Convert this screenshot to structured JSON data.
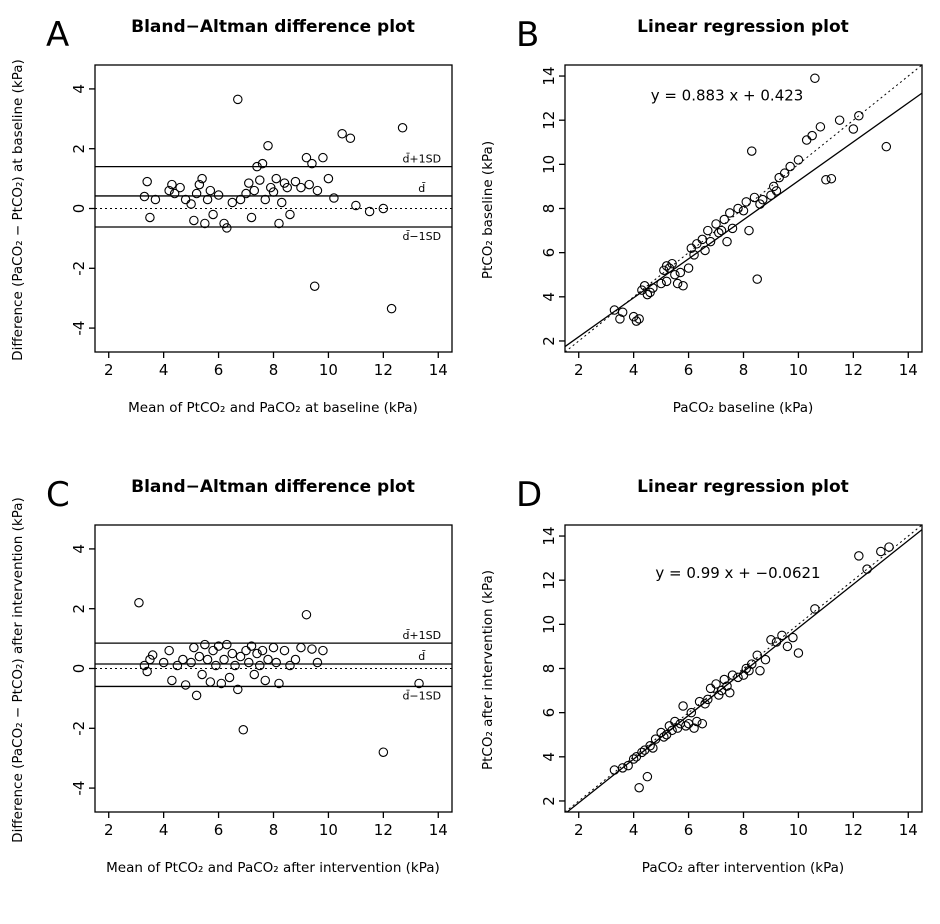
{
  "figure": {
    "background": "#ffffff",
    "point_color": "#000000",
    "line_color": "#000000"
  },
  "chart_data": [
    {
      "panel_letter": "A",
      "type": "scatter",
      "subtype": "bland_altman",
      "title": "Bland−Altman difference plot",
      "xlabel": "Mean of PtCO₂ and PaCO₂ at baseline (kPa)",
      "ylabel": "Difference (PaCO₂ − PtCO₂) at baseline (kPa)",
      "xlim": [
        1.5,
        14.5
      ],
      "ylim": [
        -4.8,
        4.8
      ],
      "xticks": [
        2,
        4,
        6,
        8,
        10,
        12,
        14
      ],
      "yticks": [
        -4,
        -2,
        0,
        2,
        4
      ],
      "ba_lines": {
        "mean": 0.42,
        "upper": 1.4,
        "lower": -0.62,
        "zero": 0
      },
      "line_labels": {
        "upper": "d̄+1SD",
        "mean": "d̄",
        "lower": "d̄−1SD"
      },
      "label_x": 13.4,
      "points": [
        [
          3.3,
          0.4
        ],
        [
          3.4,
          0.9
        ],
        [
          3.5,
          -0.3
        ],
        [
          3.7,
          0.3
        ],
        [
          4.2,
          0.6
        ],
        [
          4.3,
          0.8
        ],
        [
          4.4,
          0.5
        ],
        [
          4.6,
          0.7
        ],
        [
          4.8,
          0.3
        ],
        [
          5.0,
          0.15
        ],
        [
          5.1,
          -0.4
        ],
        [
          5.2,
          0.5
        ],
        [
          5.3,
          0.8
        ],
        [
          5.4,
          1.0
        ],
        [
          5.5,
          -0.5
        ],
        [
          5.6,
          0.3
        ],
        [
          5.7,
          0.6
        ],
        [
          5.8,
          -0.2
        ],
        [
          6.0,
          0.45
        ],
        [
          6.2,
          -0.5
        ],
        [
          6.3,
          -0.65
        ],
        [
          6.5,
          0.2
        ],
        [
          6.7,
          3.65
        ],
        [
          6.8,
          0.3
        ],
        [
          7.0,
          0.5
        ],
        [
          7.1,
          0.85
        ],
        [
          7.2,
          -0.3
        ],
        [
          7.3,
          0.6
        ],
        [
          7.4,
          1.4
        ],
        [
          7.5,
          0.95
        ],
        [
          7.6,
          1.5
        ],
        [
          7.7,
          0.3
        ],
        [
          7.8,
          2.1
        ],
        [
          7.9,
          0.7
        ],
        [
          8.0,
          0.55
        ],
        [
          8.1,
          1.0
        ],
        [
          8.2,
          -0.5
        ],
        [
          8.3,
          0.2
        ],
        [
          8.4,
          0.85
        ],
        [
          8.5,
          0.7
        ],
        [
          8.6,
          -0.2
        ],
        [
          8.8,
          0.9
        ],
        [
          9.0,
          0.7
        ],
        [
          9.2,
          1.7
        ],
        [
          9.3,
          0.8
        ],
        [
          9.4,
          1.5
        ],
        [
          9.5,
          -2.6
        ],
        [
          9.6,
          0.6
        ],
        [
          9.8,
          1.7
        ],
        [
          10.0,
          1.0
        ],
        [
          10.2,
          0.35
        ],
        [
          10.5,
          2.5
        ],
        [
          10.8,
          2.35
        ],
        [
          11.0,
          0.1
        ],
        [
          11.5,
          -0.1
        ],
        [
          12.0,
          0.0
        ],
        [
          12.3,
          -3.35
        ],
        [
          12.7,
          2.7
        ]
      ]
    },
    {
      "panel_letter": "B",
      "type": "scatter",
      "subtype": "regression",
      "title": "Linear regression plot",
      "xlabel": "PaCO₂ baseline (kPa)",
      "ylabel": "PtCO₂ baseline (kPa)",
      "xlim": [
        1.5,
        14.5
      ],
      "ylim": [
        1.5,
        14.5
      ],
      "xticks": [
        2,
        4,
        6,
        8,
        10,
        12,
        14
      ],
      "yticks": [
        2,
        4,
        6,
        8,
        10,
        12,
        14
      ],
      "equation": "y = 0.883 x + 0.423",
      "equation_pos": [
        7.4,
        12.9
      ],
      "regression": {
        "slope": 0.883,
        "intercept": 0.423
      },
      "identity_line": true,
      "points": [
        [
          3.3,
          3.4
        ],
        [
          3.5,
          3.0
        ],
        [
          3.6,
          3.3
        ],
        [
          4.0,
          3.1
        ],
        [
          4.1,
          2.9
        ],
        [
          4.2,
          3.0
        ],
        [
          4.3,
          4.3
        ],
        [
          4.4,
          4.5
        ],
        [
          4.5,
          4.1
        ],
        [
          4.6,
          4.2
        ],
        [
          4.7,
          4.4
        ],
        [
          5.0,
          4.6
        ],
        [
          5.1,
          5.2
        ],
        [
          5.2,
          5.4
        ],
        [
          5.2,
          4.7
        ],
        [
          5.3,
          5.3
        ],
        [
          5.4,
          5.5
        ],
        [
          5.5,
          5.0
        ],
        [
          5.6,
          4.6
        ],
        [
          5.7,
          5.1
        ],
        [
          5.8,
          4.5
        ],
        [
          6.0,
          5.3
        ],
        [
          6.1,
          6.2
        ],
        [
          6.2,
          5.9
        ],
        [
          6.3,
          6.4
        ],
        [
          6.5,
          6.6
        ],
        [
          6.6,
          6.1
        ],
        [
          6.7,
          7.0
        ],
        [
          6.8,
          6.5
        ],
        [
          7.0,
          7.3
        ],
        [
          7.1,
          6.9
        ],
        [
          7.2,
          7.0
        ],
        [
          7.3,
          7.5
        ],
        [
          7.4,
          6.5
        ],
        [
          7.5,
          7.8
        ],
        [
          7.6,
          7.1
        ],
        [
          7.8,
          8.0
        ],
        [
          8.0,
          7.9
        ],
        [
          8.1,
          8.3
        ],
        [
          8.2,
          7.0
        ],
        [
          8.3,
          10.6
        ],
        [
          8.4,
          8.5
        ],
        [
          8.5,
          4.8
        ],
        [
          8.6,
          8.2
        ],
        [
          8.7,
          8.4
        ],
        [
          9.0,
          8.6
        ],
        [
          9.1,
          9.0
        ],
        [
          9.2,
          8.8
        ],
        [
          9.3,
          9.4
        ],
        [
          9.5,
          9.6
        ],
        [
          9.7,
          9.9
        ],
        [
          10.0,
          10.2
        ],
        [
          10.3,
          11.1
        ],
        [
          10.5,
          11.3
        ],
        [
          10.6,
          13.9
        ],
        [
          10.8,
          11.7
        ],
        [
          11.0,
          9.3
        ],
        [
          11.2,
          9.35
        ],
        [
          11.5,
          12.0
        ],
        [
          12.0,
          11.6
        ],
        [
          12.2,
          12.2
        ],
        [
          13.2,
          10.8
        ]
      ]
    },
    {
      "panel_letter": "C",
      "type": "scatter",
      "subtype": "bland_altman",
      "title": "Bland−Altman difference plot",
      "xlabel": "Mean of PtCO₂ and PaCO₂ after intervention (kPa)",
      "ylabel": "Difference (PaCO₂ − PtCO₂) after intervention (kPa)",
      "xlim": [
        1.5,
        14.5
      ],
      "ylim": [
        -4.8,
        4.8
      ],
      "xticks": [
        2,
        4,
        6,
        8,
        10,
        12,
        14
      ],
      "yticks": [
        -4,
        -2,
        0,
        2,
        4
      ],
      "ba_lines": {
        "mean": 0.15,
        "upper": 0.85,
        "lower": -0.6,
        "zero": 0
      },
      "line_labels": {
        "upper": "d̄+1SD",
        "mean": "d̄",
        "lower": "d̄−1SD"
      },
      "label_x": 13.4,
      "points": [
        [
          3.1,
          2.2
        ],
        [
          3.3,
          0.1
        ],
        [
          3.4,
          -0.1
        ],
        [
          3.5,
          0.3
        ],
        [
          3.6,
          0.45
        ],
        [
          4.0,
          0.2
        ],
        [
          4.2,
          0.6
        ],
        [
          4.3,
          -0.4
        ],
        [
          4.5,
          0.1
        ],
        [
          4.7,
          0.3
        ],
        [
          4.8,
          -0.55
        ],
        [
          5.0,
          0.2
        ],
        [
          5.1,
          0.7
        ],
        [
          5.2,
          -0.9
        ],
        [
          5.3,
          0.4
        ],
        [
          5.4,
          -0.2
        ],
        [
          5.5,
          0.8
        ],
        [
          5.6,
          0.3
        ],
        [
          5.7,
          -0.45
        ],
        [
          5.8,
          0.6
        ],
        [
          5.9,
          0.1
        ],
        [
          6.0,
          0.75
        ],
        [
          6.1,
          -0.5
        ],
        [
          6.2,
          0.3
        ],
        [
          6.3,
          0.8
        ],
        [
          6.4,
          -0.3
        ],
        [
          6.5,
          0.5
        ],
        [
          6.6,
          0.1
        ],
        [
          6.7,
          -0.7
        ],
        [
          6.8,
          0.4
        ],
        [
          6.9,
          -2.05
        ],
        [
          7.0,
          0.6
        ],
        [
          7.1,
          0.2
        ],
        [
          7.2,
          0.75
        ],
        [
          7.3,
          -0.2
        ],
        [
          7.4,
          0.5
        ],
        [
          7.5,
          0.1
        ],
        [
          7.6,
          0.6
        ],
        [
          7.7,
          -0.4
        ],
        [
          7.8,
          0.3
        ],
        [
          8.0,
          0.7
        ],
        [
          8.1,
          0.2
        ],
        [
          8.2,
          -0.5
        ],
        [
          8.4,
          0.6
        ],
        [
          8.6,
          0.1
        ],
        [
          8.8,
          0.3
        ],
        [
          9.0,
          0.7
        ],
        [
          9.2,
          1.8
        ],
        [
          9.4,
          0.65
        ],
        [
          9.6,
          0.2
        ],
        [
          9.8,
          0.6
        ],
        [
          12.0,
          -2.8
        ],
        [
          13.3,
          -0.5
        ]
      ]
    },
    {
      "panel_letter": "D",
      "type": "scatter",
      "subtype": "regression",
      "title": "Linear regression plot",
      "xlabel": "PaCO₂ after intervention (kPa)",
      "ylabel": "PtCO₂ after intervention (kPa)",
      "xlim": [
        1.5,
        14.5
      ],
      "ylim": [
        1.5,
        14.5
      ],
      "xticks": [
        2,
        4,
        6,
        8,
        10,
        12,
        14
      ],
      "yticks": [
        2,
        4,
        6,
        8,
        10,
        12,
        14
      ],
      "equation": "y = 0.99 x + −0.0621",
      "equation_pos": [
        7.8,
        12.1
      ],
      "regression": {
        "slope": 0.99,
        "intercept": -0.0621
      },
      "identity_line": true,
      "points": [
        [
          3.3,
          3.4
        ],
        [
          3.6,
          3.5
        ],
        [
          3.8,
          3.6
        ],
        [
          4.0,
          3.9
        ],
        [
          4.1,
          4.0
        ],
        [
          4.2,
          2.6
        ],
        [
          4.3,
          4.2
        ],
        [
          4.4,
          4.3
        ],
        [
          4.5,
          3.1
        ],
        [
          4.6,
          4.5
        ],
        [
          4.7,
          4.4
        ],
        [
          4.8,
          4.8
        ],
        [
          5.0,
          5.1
        ],
        [
          5.1,
          4.9
        ],
        [
          5.2,
          5.0
        ],
        [
          5.3,
          5.4
        ],
        [
          5.4,
          5.2
        ],
        [
          5.5,
          5.6
        ],
        [
          5.6,
          5.3
        ],
        [
          5.7,
          5.5
        ],
        [
          5.8,
          6.3
        ],
        [
          5.9,
          5.4
        ],
        [
          6.0,
          5.5
        ],
        [
          6.1,
          6.0
        ],
        [
          6.2,
          5.3
        ],
        [
          6.3,
          5.6
        ],
        [
          6.4,
          6.5
        ],
        [
          6.5,
          5.5
        ],
        [
          6.6,
          6.4
        ],
        [
          6.7,
          6.6
        ],
        [
          6.8,
          7.1
        ],
        [
          7.0,
          7.3
        ],
        [
          7.1,
          6.8
        ],
        [
          7.2,
          7.0
        ],
        [
          7.3,
          7.5
        ],
        [
          7.4,
          7.2
        ],
        [
          7.5,
          6.9
        ],
        [
          7.6,
          7.7
        ],
        [
          7.8,
          7.6
        ],
        [
          8.0,
          7.7
        ],
        [
          8.1,
          8.0
        ],
        [
          8.2,
          7.9
        ],
        [
          8.3,
          8.2
        ],
        [
          8.5,
          8.6
        ],
        [
          8.6,
          7.9
        ],
        [
          8.8,
          8.4
        ],
        [
          9.0,
          9.3
        ],
        [
          9.2,
          9.2
        ],
        [
          9.4,
          9.5
        ],
        [
          9.6,
          9.0
        ],
        [
          9.8,
          9.4
        ],
        [
          10.0,
          8.7
        ],
        [
          10.6,
          10.7
        ],
        [
          12.2,
          13.1
        ],
        [
          12.5,
          12.5
        ],
        [
          13.0,
          13.3
        ],
        [
          13.3,
          13.5
        ]
      ]
    }
  ]
}
